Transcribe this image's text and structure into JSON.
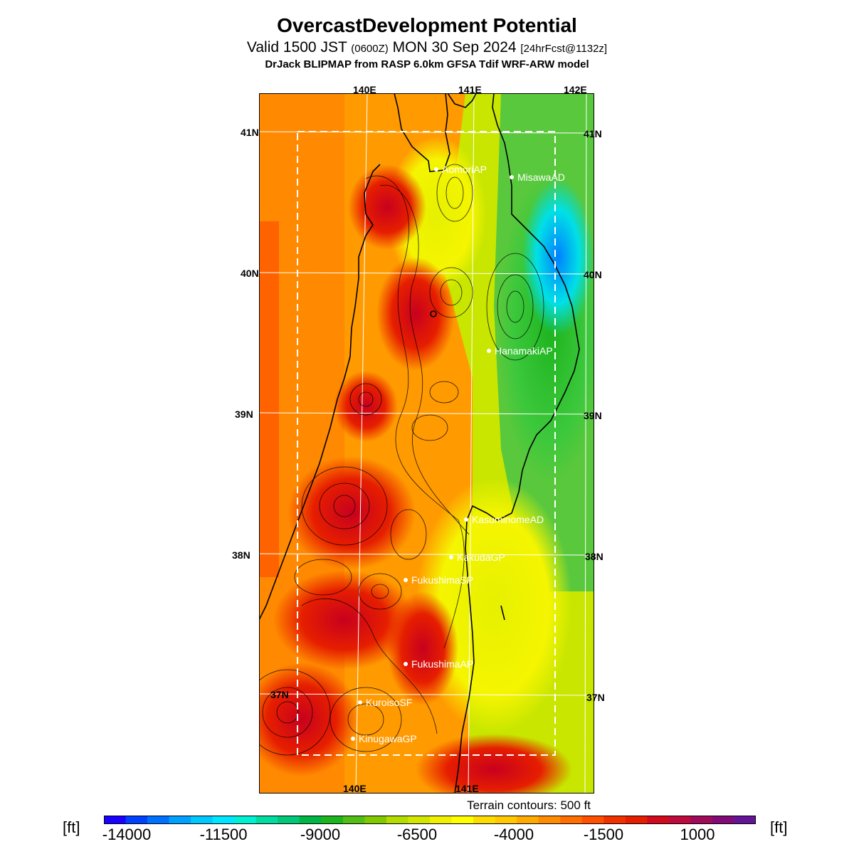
{
  "header": {
    "title": "OvercastDevelopment Potential",
    "valid_main": "Valid 1500 JST",
    "valid_utc": "(0600Z)",
    "valid_date": "MON 30 Sep 2024",
    "forecast": "[24hrFcst@1132z]",
    "model_line": "DrJack BLIPMAP from RASP 6.0km GFSA Tdif WRF-ARW model"
  },
  "map": {
    "lon_top": [
      "140E",
      "141E",
      "142E"
    ],
    "lon_bottom": [
      "140E",
      "141E"
    ],
    "lat_left": [
      "41N",
      "40N",
      "39N",
      "38N",
      "37N"
    ],
    "lat_right": [
      "41N",
      "40N",
      "39N",
      "38N",
      "37N"
    ],
    "stations": [
      {
        "name": "AomoriAP"
      },
      {
        "name": "MisawaAD"
      },
      {
        "name": "HanamakiAP"
      },
      {
        "name": "KasuminomeAD"
      },
      {
        "name": "KakudaGP"
      },
      {
        "name": "FukushimaSP"
      },
      {
        "name": "FukushimaAP"
      },
      {
        "name": "KuroisoSF"
      },
      {
        "name": "KinugawaGP"
      }
    ]
  },
  "legend": {
    "terrain_note": "Terrain contours: 500 ft",
    "unit": "[ft]",
    "tick_labels": [
      "-14000",
      "-11500",
      "-9000",
      "-6500",
      "-4000",
      "-1500",
      "1000"
    ],
    "colors": [
      "#1a00ff",
      "#0040ff",
      "#0070ff",
      "#00a0ff",
      "#00c8ff",
      "#00e6ff",
      "#00f0d2",
      "#00dca0",
      "#00c878",
      "#00b446",
      "#1eb41e",
      "#50be14",
      "#82c800",
      "#b4dc00",
      "#d2e600",
      "#f0f000",
      "#ffff00",
      "#ffdc00",
      "#ffc800",
      "#ffaa00",
      "#ff8c00",
      "#ff6e00",
      "#ff5000",
      "#f03200",
      "#e61e00",
      "#d20a1e",
      "#be0a3c",
      "#a00a5a",
      "#820a78",
      "#641496"
    ]
  }
}
